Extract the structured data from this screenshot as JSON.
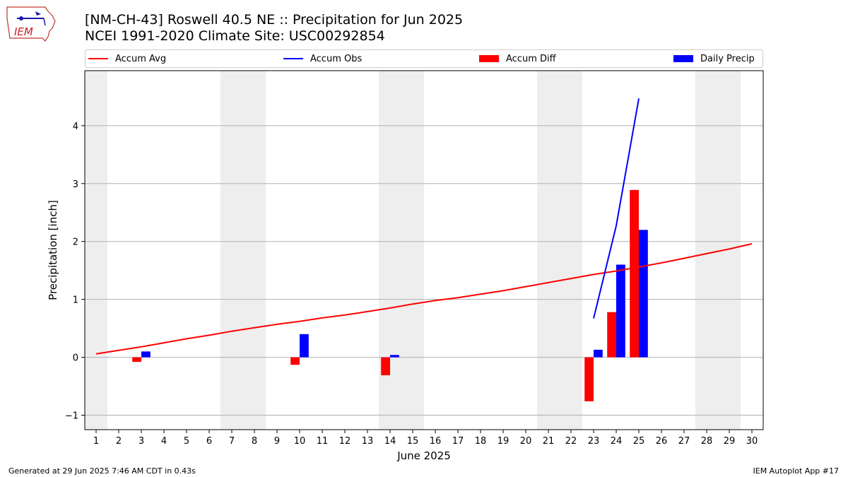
{
  "header": {
    "title": "[NM-CH-43] Roswell 40.5 NE :: Precipitation for Jun 2025",
    "subtitle": "NCEI 1991-2020 Climate Site: USC00292854",
    "logo_text": "IEM"
  },
  "legend": {
    "accum_avg": "Accum Avg",
    "accum_obs": "Accum Obs",
    "accum_diff": "Accum Diff",
    "daily_precip": "Daily Precip"
  },
  "footer": {
    "generated": "Generated at 29 Jun 2025 7:46 AM CDT in 0.43s",
    "app": "IEM Autoplot App #17"
  },
  "colors": {
    "accum_avg": "#ff0000",
    "accum_obs": "#0000ff",
    "accum_diff": "#ff0000",
    "daily_precip": "#0000ff",
    "weekend_shading": "#eeeeee",
    "grid": "#b0b0b0"
  },
  "chart_data": {
    "type": "bar",
    "xlabel": "June 2025",
    "ylabel": "Precipitation [inch]",
    "xlim": [
      0.5,
      30.5
    ],
    "ylim": [
      -1.25,
      4.95
    ],
    "x_ticks": [
      1,
      2,
      3,
      4,
      5,
      6,
      7,
      8,
      9,
      10,
      11,
      12,
      13,
      14,
      15,
      16,
      17,
      18,
      19,
      20,
      21,
      22,
      23,
      24,
      25,
      26,
      27,
      28,
      29,
      30
    ],
    "y_ticks": [
      -1,
      0,
      1,
      2,
      3,
      4
    ],
    "y_tick_labels": [
      "−1",
      "0",
      "1",
      "2",
      "3",
      "4"
    ],
    "grid": "horizontal",
    "legend_position": "top",
    "weekend_shading_days": [
      1,
      7,
      8,
      14,
      15,
      21,
      22,
      28,
      29
    ],
    "series": [
      {
        "name": "Accum Avg",
        "type": "line",
        "x": [
          1,
          2,
          3,
          4,
          5,
          6,
          7,
          8,
          9,
          10,
          11,
          12,
          13,
          14,
          15,
          16,
          17,
          18,
          19,
          20,
          21,
          22,
          23,
          24,
          25,
          26,
          27,
          28,
          29,
          30
        ],
        "values": [
          0.06,
          0.12,
          0.18,
          0.25,
          0.32,
          0.38,
          0.45,
          0.51,
          0.57,
          0.62,
          0.68,
          0.73,
          0.79,
          0.85,
          0.92,
          0.98,
          1.03,
          1.09,
          1.15,
          1.22,
          1.29,
          1.36,
          1.43,
          1.49,
          1.56,
          1.63,
          1.71,
          1.79,
          1.87,
          1.96
        ]
      },
      {
        "name": "Accum Obs",
        "type": "line",
        "x": [
          23,
          24,
          25
        ],
        "values": [
          0.67,
          2.27,
          4.47
        ]
      },
      {
        "name": "Accum Diff",
        "type": "bar",
        "x": [
          3,
          10,
          14,
          23,
          24,
          25
        ],
        "values": [
          -0.08,
          -0.13,
          -0.31,
          -0.76,
          0.78,
          2.89
        ]
      },
      {
        "name": "Daily Precip",
        "type": "bar",
        "x": [
          3,
          10,
          14,
          23,
          24,
          25
        ],
        "values": [
          0.1,
          0.4,
          0.04,
          0.13,
          1.6,
          2.2
        ]
      }
    ]
  }
}
